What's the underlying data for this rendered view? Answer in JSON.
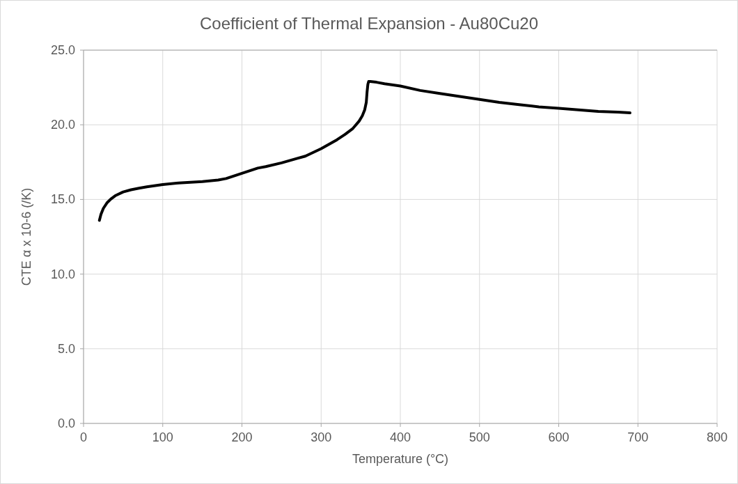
{
  "chart_data": {
    "type": "line",
    "title": "Coefficient of Thermal Expansion - Au80Cu20",
    "xlabel": "Temperature (°C)",
    "ylabel": "CTE  α x 10-6 (/K)",
    "series": [
      {
        "color": "#000000",
        "x": [
          20,
          22,
          25,
          30,
          35,
          40,
          50,
          60,
          70,
          80,
          100,
          120,
          150,
          170,
          180,
          200,
          220,
          230,
          250,
          270,
          280,
          300,
          320,
          330,
          340,
          348,
          352,
          355,
          357,
          358,
          359,
          360,
          362,
          370,
          380,
          400,
          425,
          450,
          475,
          500,
          525,
          550,
          575,
          600,
          625,
          650,
          675,
          690
        ],
        "values": [
          13.6,
          14.0,
          14.4,
          14.8,
          15.05,
          15.25,
          15.5,
          15.65,
          15.75,
          15.85,
          16.0,
          16.1,
          16.2,
          16.3,
          16.4,
          16.75,
          17.1,
          17.2,
          17.45,
          17.75,
          17.9,
          18.4,
          19.0,
          19.35,
          19.75,
          20.25,
          20.6,
          21.0,
          21.5,
          22.2,
          22.7,
          22.9,
          22.9,
          22.85,
          22.75,
          22.6,
          22.3,
          22.1,
          21.9,
          21.7,
          21.5,
          21.35,
          21.2,
          21.1,
          21.0,
          20.9,
          20.85,
          20.8
        ]
      }
    ],
    "xlim": [
      0,
      800
    ],
    "xticks": [
      0,
      100,
      200,
      300,
      400,
      500,
      600,
      700,
      800
    ],
    "ylim": [
      0,
      25
    ],
    "yticks": [
      {
        "value": 0,
        "label": "0.0"
      },
      {
        "value": 5,
        "label": "5.0"
      },
      {
        "value": 10,
        "label": "10.0"
      },
      {
        "value": 15,
        "label": "15.0"
      },
      {
        "value": 20,
        "label": "20.0"
      },
      {
        "value": 25,
        "label": "25.0"
      }
    ],
    "grid": true,
    "marker": "none",
    "line_style": "solid"
  }
}
